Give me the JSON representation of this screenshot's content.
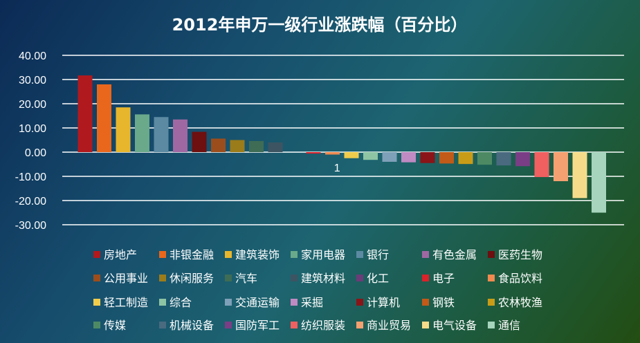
{
  "chart_data": {
    "type": "bar",
    "title": "2012年申万一级行业涨跌幅（百分比）",
    "categories": [
      "1"
    ],
    "ylim": [
      -30,
      40
    ],
    "yticks": [
      "40.00",
      "30.00",
      "20.00",
      "10.00",
      "0.00",
      "-10.00",
      "-20.00",
      "-30.00"
    ],
    "grid": true,
    "legend_position": "bottom",
    "series": [
      {
        "name": "房地产",
        "values": [
          31.7
        ],
        "color": "#b0191e"
      },
      {
        "name": "非银金融",
        "values": [
          28.0
        ],
        "color": "#e8671c"
      },
      {
        "name": "建筑装饰",
        "values": [
          18.5
        ],
        "color": "#e8b62c"
      },
      {
        "name": "家用电器",
        "values": [
          15.6
        ],
        "color": "#6aa98a"
      },
      {
        "name": "银行",
        "values": [
          14.5
        ],
        "color": "#5b8aa2"
      },
      {
        "name": "有色金属",
        "values": [
          13.5
        ],
        "color": "#a068a2"
      },
      {
        "name": "医药生物",
        "values": [
          8.4
        ],
        "color": "#6e0f10"
      },
      {
        "name": "公用事业",
        "values": [
          5.6
        ],
        "color": "#9c4d1c"
      },
      {
        "name": "休闲服务",
        "values": [
          5.0
        ],
        "color": "#9b7c1a"
      },
      {
        "name": "汽车",
        "values": [
          4.6
        ],
        "color": "#3e6c55"
      },
      {
        "name": "建筑材料",
        "values": [
          4.0
        ],
        "color": "#3d5462"
      },
      {
        "name": "化工",
        "values": [
          0.0
        ],
        "color": "#6c3c78"
      },
      {
        "name": "电子",
        "values": [
          -0.6
        ],
        "color": "#d9222a"
      },
      {
        "name": "食品饮料",
        "values": [
          -1.0
        ],
        "color": "#f08a50"
      },
      {
        "name": "轻工制造",
        "values": [
          -2.5
        ],
        "color": "#f0cc4c"
      },
      {
        "name": "综合",
        "values": [
          -3.2
        ],
        "color": "#8ec4a4"
      },
      {
        "name": "交通运输",
        "values": [
          -4.0
        ],
        "color": "#7ea0b8"
      },
      {
        "name": "采掘",
        "values": [
          -4.2
        ],
        "color": "#c08ac2"
      },
      {
        "name": "计算机",
        "values": [
          -4.5
        ],
        "color": "#8a1418"
      },
      {
        "name": "钢铁",
        "values": [
          -4.7
        ],
        "color": "#c25a18"
      },
      {
        "name": "农林牧渔",
        "values": [
          -4.9
        ],
        "color": "#c99c18"
      },
      {
        "name": "传媒",
        "values": [
          -5.2
        ],
        "color": "#4d8a64"
      },
      {
        "name": "机械设备",
        "values": [
          -5.5
        ],
        "color": "#4a6a80"
      },
      {
        "name": "国防军工",
        "values": [
          -5.8
        ],
        "color": "#7a3e86"
      },
      {
        "name": "纺织服装",
        "values": [
          -10.3
        ],
        "color": "#f06060"
      },
      {
        "name": "商业贸易",
        "values": [
          -12.0
        ],
        "color": "#f4a070"
      },
      {
        "name": "电气设备",
        "values": [
          -19.0
        ],
        "color": "#f6dc8a"
      },
      {
        "name": "通信",
        "values": [
          -25.0
        ],
        "color": "#a6d4bc"
      }
    ]
  }
}
